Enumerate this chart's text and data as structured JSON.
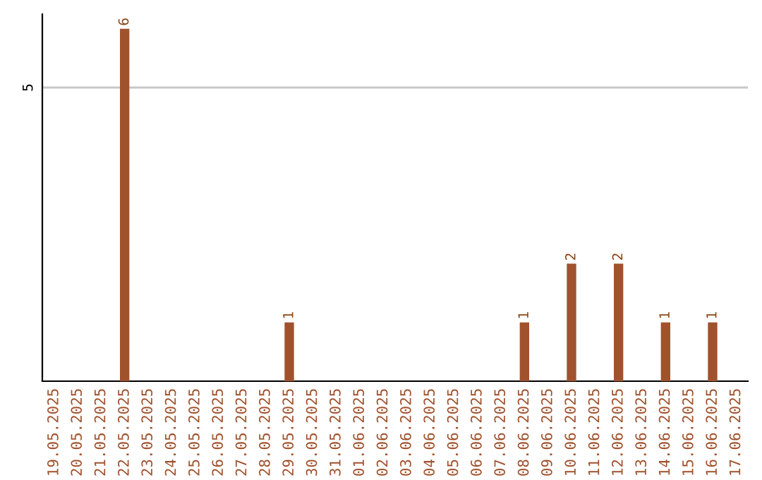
{
  "chart_data": {
    "type": "bar",
    "categories": [
      "19.05.2025",
      "20.05.2025",
      "21.05.2025",
      "22.05.2025",
      "23.05.2025",
      "24.05.2025",
      "25.05.2025",
      "26.05.2025",
      "27.05.2025",
      "28.05.2025",
      "29.05.2025",
      "30.05.2025",
      "31.05.2025",
      "01.06.2025",
      "02.06.2025",
      "03.06.2025",
      "04.06.2025",
      "05.06.2025",
      "06.06.2025",
      "07.06.2025",
      "08.06.2025",
      "09.06.2025",
      "10.06.2025",
      "11.06.2025",
      "12.06.2025",
      "13.06.2025",
      "14.06.2025",
      "15.06.2025",
      "16.06.2025",
      "17.06.2025"
    ],
    "values": [
      0,
      0,
      0,
      6,
      0,
      0,
      0,
      0,
      0,
      0,
      1,
      0,
      0,
      0,
      0,
      0,
      0,
      0,
      0,
      0,
      1,
      0,
      2,
      0,
      2,
      0,
      1,
      0,
      1,
      0
    ],
    "value_labels": [
      null,
      null,
      null,
      "6",
      null,
      null,
      null,
      null,
      null,
      null,
      "1",
      null,
      null,
      null,
      null,
      null,
      null,
      null,
      null,
      null,
      "1",
      null,
      "2",
      null,
      "2",
      null,
      "1",
      null,
      "1",
      null
    ],
    "color": "#a0522d",
    "ylim": [
      0,
      6.25
    ],
    "yticks": [
      5
    ],
    "grid": "y",
    "legend": false
  }
}
